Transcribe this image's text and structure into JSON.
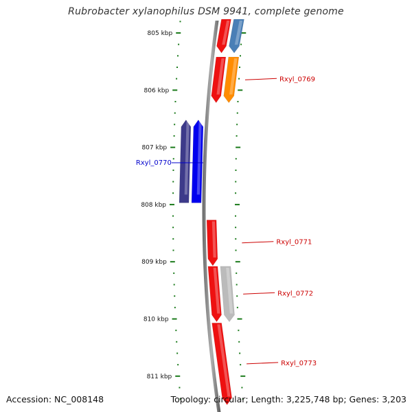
{
  "title": "Rubrobacter xylanophilus DSM 9941, complete genome",
  "footer": {
    "accession": "Accession: NC_008148",
    "topology": "Topology: circular; Length: 3,225,748 bp; Genes: 3,203"
  },
  "axis": {
    "unit": "kbp",
    "ticks": [
      {
        "kbp": 805,
        "label": "805 kbp"
      },
      {
        "kbp": 806,
        "label": "806 kbp"
      },
      {
        "kbp": 807,
        "label": "807 kbp"
      },
      {
        "kbp": 808,
        "label": "808 kbp"
      },
      {
        "kbp": 809,
        "label": "809 kbp"
      },
      {
        "kbp": 810,
        "label": "810 kbp"
      },
      {
        "kbp": 811,
        "label": "811 kbp"
      }
    ]
  },
  "genes": [
    {
      "name": "",
      "strand": "+",
      "track": "forward-1",
      "start_kbp": 804.55,
      "end_kbp": 805.35,
      "color": "#ee1111"
    },
    {
      "name": "",
      "strand": "+",
      "track": "forward-2",
      "start_kbp": 804.55,
      "end_kbp": 805.35,
      "color": "#4a7fb6"
    },
    {
      "name": "",
      "strand": "+",
      "track": "forward-1",
      "start_kbp": 805.42,
      "end_kbp": 806.22,
      "color": "#ee1111"
    },
    {
      "name": "Rxyl_0769",
      "strand": "+",
      "track": "forward-2",
      "start_kbp": 805.42,
      "end_kbp": 806.22,
      "color": "#ff8c00",
      "label_color": "#cc0000"
    },
    {
      "name": "",
      "strand": "-",
      "track": "reverse-2",
      "start_kbp": 806.52,
      "end_kbp": 807.97,
      "color": "#3d3a8a"
    },
    {
      "name": "Rxyl_0770",
      "strand": "-",
      "track": "reverse-1",
      "start_kbp": 806.52,
      "end_kbp": 807.97,
      "color": "#0000ee",
      "label_color": "#0000cc"
    },
    {
      "name": "Rxyl_0771",
      "strand": "+",
      "track": "forward-1",
      "start_kbp": 808.27,
      "end_kbp": 809.07,
      "color": "#ee1111",
      "label_color": "#cc0000"
    },
    {
      "name": "",
      "strand": "+",
      "track": "forward-1",
      "start_kbp": 809.08,
      "end_kbp": 810.05,
      "color": "#ee1111"
    },
    {
      "name": "Rxyl_0772",
      "strand": "+",
      "track": "forward-2",
      "start_kbp": 809.08,
      "end_kbp": 810.05,
      "color": "#bbbbbb",
      "label_color": "#cc0000"
    },
    {
      "name": "Rxyl_0773",
      "strand": "+",
      "track": "forward-1",
      "start_kbp": 810.07,
      "end_kbp": 811.5,
      "color": "#ee1111",
      "label_color": "#cc0000"
    }
  ]
}
